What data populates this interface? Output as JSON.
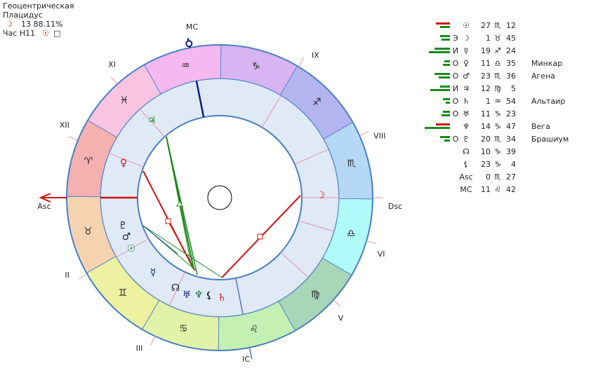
{
  "header": {
    "line1": "Геоцентрическая",
    "line2": "Плацидус",
    "moon": "☽",
    "moon_info": "13 88.11%",
    "hour": "Час H11",
    "hour_glyph": "☉",
    "hour_box": "□"
  },
  "zodiac": [
    "♈",
    "♉",
    "♊",
    "♋",
    "♌",
    "♍",
    "♎",
    "♏",
    "♐",
    "♑",
    "♒",
    "♓"
  ],
  "houses": [
    "Asc",
    "II",
    "III",
    "IC",
    "V",
    "VI",
    "Dsc",
    "VIII",
    "IX",
    "MC",
    "XI",
    "XII"
  ],
  "table": {
    "rows": [
      {
        "planet": "☉",
        "deg": "27",
        "sign": "♏",
        "min": "12"
      },
      {
        "mark": "Э",
        "planet": "☽",
        "deg": "1",
        "sign": "♉",
        "min": "45"
      },
      {
        "mark": "И",
        "planet": "☿",
        "deg": "19",
        "sign": "♐",
        "min": "24"
      },
      {
        "mark": "О",
        "planet": "♀",
        "deg": "11",
        "sign": "♎",
        "min": "35",
        "star": "Минкар"
      },
      {
        "mark": "О",
        "planet": "♂",
        "deg": "23",
        "sign": "♏",
        "min": "36",
        "star": "Агена"
      },
      {
        "mark": "И",
        "planet": "♃",
        "deg": "12",
        "sign": "♍",
        "min": "5"
      },
      {
        "mark": "О",
        "planet": "♄",
        "deg": "1",
        "sign": "♒",
        "min": "54",
        "star": "Альтаир"
      },
      {
        "mark": "О",
        "planet": "♅",
        "deg": "11",
        "sign": "♑",
        "min": "23"
      },
      {
        "planet": "♆",
        "deg": "14",
        "sign": "♑",
        "min": "47",
        "star": "Вега"
      },
      {
        "mark": "О",
        "planet": "♇",
        "deg": "20",
        "sign": "♏",
        "min": "34",
        "star": "Брашиум"
      },
      {
        "planet": "☊",
        "deg": "10",
        "sign": "♑",
        "min": "39"
      },
      {
        "planet": "⚸",
        "deg": "23",
        "sign": "♑",
        "min": "4"
      },
      {
        "planet": "Asc",
        "deg": "0",
        "sign": "♏",
        "min": "27"
      },
      {
        "planet": "MC",
        "deg": "11",
        "sign": "♌",
        "min": "42"
      }
    ]
  }
}
